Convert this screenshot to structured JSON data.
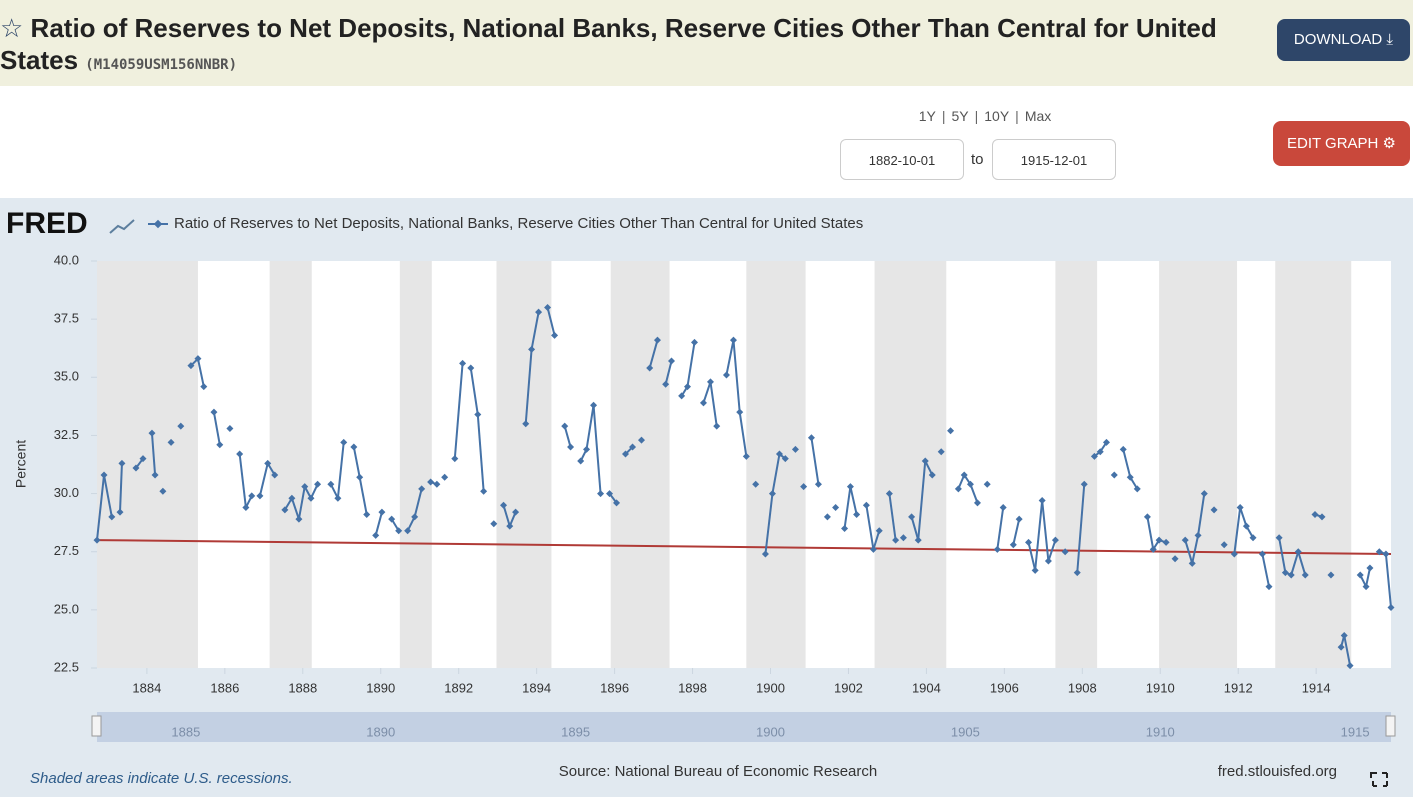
{
  "header": {
    "title": "Ratio of Reserves to Net Deposits, National Banks, Reserve Cities Other Than Central for United States",
    "series_id": "(M14059USM156NNBR)",
    "download": "DOWNLOAD"
  },
  "controls": {
    "ranges": [
      "1Y",
      "5Y",
      "10Y",
      "Max"
    ],
    "start": "1882-10-01",
    "to": "to",
    "end": "1915-12-01",
    "edit": "EDIT GRAPH"
  },
  "chart_data": {
    "type": "scatter",
    "logo": "FRED",
    "ylabel": "Percent",
    "series": [
      {
        "name": "Ratio of Reserves to Net Deposits, National Banks, Reserve Cities Other Than Central for United States",
        "color": "#4572a7",
        "x": [
          1882.72,
          1882.9,
          1883.1,
          1883.31,
          1883.36,
          1883.72,
          1883.9,
          1884.13,
          1884.21,
          1884.41,
          1884.62,
          1884.87,
          1885.13,
          1885.31,
          1885.46,
          1885.72,
          1885.87,
          1886.13,
          1886.38,
          1886.54,
          1886.69,
          1886.9,
          1887.1,
          1887.28,
          1887.54,
          1887.72,
          1887.9,
          1888.05,
          1888.21,
          1888.38,
          1888.72,
          1888.9,
          1889.05,
          1889.31,
          1889.46,
          1889.64,
          1889.87,
          1890.03,
          1890.28,
          1890.46,
          1890.69,
          1890.87,
          1891.05,
          1891.28,
          1891.44,
          1891.64,
          1891.9,
          1892.1,
          1892.31,
          1892.49,
          1892.64,
          1892.9,
          1893.15,
          1893.31,
          1893.46,
          1893.72,
          1893.87,
          1894.05,
          1894.28,
          1894.46,
          1894.72,
          1894.87,
          1895.13,
          1895.28,
          1895.46,
          1895.64,
          1895.87,
          1896.05,
          1896.28,
          1896.46,
          1896.69,
          1896.9,
          1897.1,
          1897.31,
          1897.46,
          1897.72,
          1897.87,
          1898.05,
          1898.28,
          1898.46,
          1898.62,
          1898.87,
          1899.05,
          1899.21,
          1899.38,
          1899.62,
          1899.87,
          1900.05,
          1900.23,
          1900.38,
          1900.64,
          1900.85,
          1901.05,
          1901.23,
          1901.46,
          1901.67,
          1901.9,
          1902.05,
          1902.21,
          1902.46,
          1902.64,
          1902.79,
          1903.05,
          1903.21,
          1903.41,
          1903.62,
          1903.79,
          1903.97,
          1904.15,
          1904.38,
          1904.62,
          1904.82,
          1904.97,
          1905.13,
          1905.31,
          1905.56,
          1905.82,
          1905.97,
          1906.23,
          1906.38,
          1906.62,
          1906.79,
          1906.97,
          1907.13,
          1907.31,
          1907.56,
          1907.87,
          1908.05,
          1908.31,
          1908.46,
          1908.62,
          1908.82,
          1909.05,
          1909.23,
          1909.41,
          1909.67,
          1909.82,
          1909.97,
          1910.15,
          1910.38,
          1910.64,
          1910.82,
          1910.97,
          1911.13,
          1911.38,
          1911.64,
          1911.9,
          1912.05,
          1912.21,
          1912.38,
          1912.62,
          1912.79,
          1913.05,
          1913.21,
          1913.36,
          1913.54,
          1913.72,
          1913.97,
          1914.15,
          1914.38,
          1914.64,
          1914.72,
          1914.87,
          1915.13,
          1915.28,
          1915.38,
          1915.62,
          1915.79,
          1915.92
        ],
        "values": [
          28.0,
          30.8,
          29.0,
          29.2,
          31.3,
          31.1,
          31.5,
          32.6,
          30.8,
          30.1,
          32.2,
          32.9,
          35.5,
          35.8,
          34.6,
          33.5,
          32.1,
          32.8,
          31.7,
          29.4,
          29.9,
          29.9,
          31.3,
          30.8,
          29.3,
          29.8,
          28.9,
          30.3,
          29.8,
          30.4,
          30.4,
          29.8,
          32.2,
          32.0,
          30.7,
          29.1,
          28.2,
          29.2,
          28.9,
          28.4,
          28.4,
          29.0,
          30.2,
          30.5,
          30.4,
          30.7,
          31.5,
          35.6,
          35.4,
          33.4,
          30.1,
          28.7,
          29.5,
          28.6,
          29.2,
          33.0,
          36.2,
          37.8,
          38.0,
          36.8,
          32.9,
          32.0,
          31.4,
          31.9,
          33.8,
          30.0,
          30.0,
          29.6,
          31.7,
          32.0,
          32.3,
          35.4,
          36.6,
          34.7,
          35.7,
          34.2,
          34.6,
          36.5,
          33.9,
          34.8,
          32.9,
          35.1,
          36.6,
          33.5,
          31.6,
          30.4,
          27.4,
          30.0,
          31.7,
          31.5,
          31.9,
          30.3,
          32.4,
          30.4,
          29.0,
          29.4,
          28.5,
          30.3,
          29.1,
          29.5,
          27.6,
          28.4,
          30.0,
          28.0,
          28.1,
          29.0,
          28.0,
          31.4,
          30.8,
          31.8,
          32.7,
          30.2,
          30.8,
          30.4,
          29.6,
          30.4,
          27.6,
          29.4,
          27.8,
          28.9,
          27.9,
          26.7,
          29.7,
          27.1,
          28.0,
          27.5,
          26.6,
          30.4,
          31.6,
          31.8,
          32.2,
          30.8,
          31.9,
          30.7,
          30.2,
          29.0,
          27.6,
          28.0,
          27.9,
          27.2,
          28.0,
          27.0,
          28.2,
          30.0,
          29.3,
          27.8,
          27.4,
          29.4,
          28.6,
          28.1,
          27.4,
          26.0,
          28.1,
          26.6,
          26.5,
          27.5,
          26.5,
          29.1,
          29.0,
          26.5,
          23.4,
          23.9,
          22.6,
          26.5,
          26.0,
          26.8,
          27.5,
          27.4,
          25.1
        ]
      }
    ],
    "trend": {
      "color": "#b03a36",
      "x": [
        1882.72,
        1915.92
      ],
      "values": [
        28.0,
        27.4
      ]
    },
    "recessions": [
      [
        1882.72,
        1885.31
      ],
      [
        1887.15,
        1888.23
      ],
      [
        1890.49,
        1891.31
      ],
      [
        1892.97,
        1894.38
      ],
      [
        1895.9,
        1897.41
      ],
      [
        1899.38,
        1900.9
      ],
      [
        1902.67,
        1904.51
      ],
      [
        1907.31,
        1908.38
      ],
      [
        1909.97,
        1911.97
      ],
      [
        1912.95,
        1914.9
      ]
    ],
    "recession_color": "#e6e6e6",
    "xlim": [
      1882.72,
      1915.92
    ],
    "ylim": [
      22.5,
      40
    ],
    "xticks": [
      1884,
      1886,
      1888,
      1890,
      1892,
      1894,
      1896,
      1898,
      1900,
      1902,
      1904,
      1906,
      1908,
      1910,
      1912,
      1914
    ],
    "yticks": [
      22.5,
      {
        "value": 25,
        "label": "25.0"
      },
      27.5,
      {
        "value": 30,
        "label": "30.0"
      },
      32.5,
      {
        "value": 35,
        "label": "35.0"
      },
      37.5,
      {
        "value": 40,
        "label": "40.0"
      }
    ]
  },
  "navigator": {
    "labels": [
      1885,
      1890,
      1895,
      1900,
      1905,
      1910,
      1915
    ]
  },
  "footer": {
    "note": "Shaded areas indicate U.S. recessions.",
    "source": "Source: National Bureau of Economic Research",
    "site": "fred.stlouisfed.org"
  }
}
